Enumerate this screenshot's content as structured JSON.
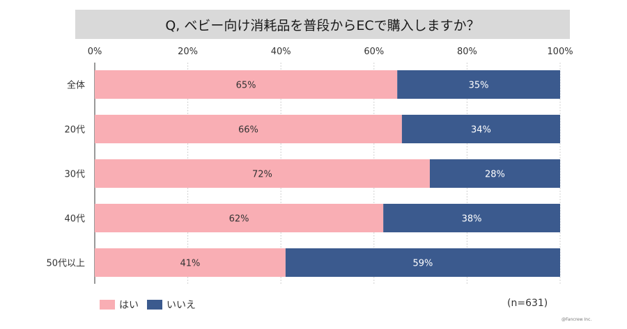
{
  "chart_data": {
    "type": "bar",
    "orientation": "horizontal",
    "stacked": true,
    "title": "Q, ベビー向け消耗品を普段からECで購入しますか？",
    "categories": [
      "全体",
      "20代",
      "30代",
      "40代",
      "50代以上"
    ],
    "series": [
      {
        "name": "はい",
        "values": [
          65,
          66,
          72,
          62,
          41
        ],
        "labels": [
          "65%",
          "66%",
          "72%",
          "62%",
          "41%"
        ],
        "color": "#f9aeb4"
      },
      {
        "name": "いいえ",
        "values": [
          35,
          34,
          28,
          38,
          59
        ],
        "labels": [
          "35%",
          "34%",
          "28%",
          "38%",
          "59%"
        ],
        "color": "#3b5a8e"
      }
    ],
    "xlim": [
      0,
      100
    ],
    "xticks": [
      "0%",
      "20%",
      "40%",
      "60%",
      "80%",
      "100%"
    ],
    "grid": true,
    "legend_position": "bottom-left"
  },
  "sample_size": "(n=631)",
  "credit": "@Fancrew Inc."
}
